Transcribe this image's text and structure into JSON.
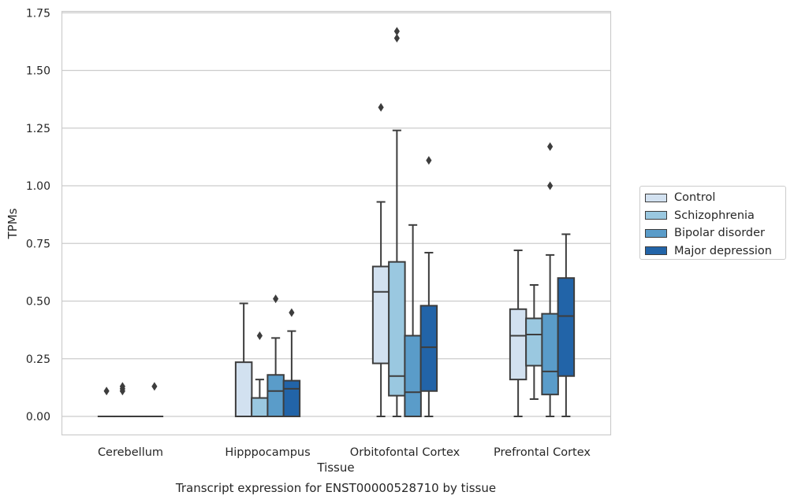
{
  "chart_data": {
    "type": "boxplot",
    "title": "Transcript expression for ENST00000528710 by tissue",
    "xlabel": "Tissue",
    "ylabel": "TPMs",
    "ylim": [
      -0.08,
      1.75
    ],
    "yticks": [
      "0.00",
      "0.25",
      "0.50",
      "0.75",
      "1.00",
      "1.25",
      "1.50",
      "1.75"
    ],
    "grid": "horizontal",
    "legend_position": "right",
    "categories": [
      "Cerebellum",
      "Hipppocampus",
      "Orbitofontal Cortex",
      "Prefrontal Cortex"
    ],
    "series": [
      {
        "name": "Control",
        "color": "#d2e1f0",
        "boxes": [
          {
            "whislo": 0,
            "q1": 0,
            "med": 0,
            "q3": 0,
            "whishi": 0,
            "fliers": [
              0.11
            ]
          },
          {
            "whislo": 0,
            "q1": 0,
            "med": 0,
            "q3": 0.235,
            "whishi": 0.49,
            "fliers": []
          },
          {
            "whislo": 0,
            "q1": 0.23,
            "med": 0.54,
            "q3": 0.65,
            "whishi": 0.93,
            "fliers": [
              1.34
            ]
          },
          {
            "whislo": 0,
            "q1": 0.16,
            "med": 0.35,
            "q3": 0.465,
            "whishi": 0.72,
            "fliers": []
          }
        ]
      },
      {
        "name": "Schizophrenia",
        "color": "#9ac8e0",
        "boxes": [
          {
            "whislo": 0,
            "q1": 0,
            "med": 0,
            "q3": 0,
            "whishi": 0,
            "fliers": [
              0.11,
              0.12,
              0.13
            ]
          },
          {
            "whislo": 0,
            "q1": 0,
            "med": 0,
            "q3": 0.08,
            "whishi": 0.16,
            "fliers": [
              0.35
            ]
          },
          {
            "whislo": 0,
            "q1": 0.09,
            "med": 0.175,
            "q3": 0.67,
            "whishi": 1.24,
            "fliers": [
              1.64,
              1.67
            ]
          },
          {
            "whislo": 0.075,
            "q1": 0.22,
            "med": 0.355,
            "q3": 0.425,
            "whishi": 0.57,
            "fliers": []
          }
        ]
      },
      {
        "name": "Bipolar disorder",
        "color": "#5a9cc9",
        "boxes": [
          {
            "whislo": 0,
            "q1": 0,
            "med": 0,
            "q3": 0,
            "whishi": 0,
            "fliers": []
          },
          {
            "whislo": 0,
            "q1": 0,
            "med": 0.11,
            "q3": 0.18,
            "whishi": 0.34,
            "fliers": [
              0.51
            ]
          },
          {
            "whislo": 0,
            "q1": 0,
            "med": 0.105,
            "q3": 0.35,
            "whishi": 0.83,
            "fliers": []
          },
          {
            "whislo": 0,
            "q1": 0.095,
            "med": 0.195,
            "q3": 0.445,
            "whishi": 0.7,
            "fliers": [
              1.0,
              1.17
            ]
          }
        ]
      },
      {
        "name": "Major depression",
        "color": "#2264a8",
        "boxes": [
          {
            "whislo": 0,
            "q1": 0,
            "med": 0,
            "q3": 0,
            "whishi": 0,
            "fliers": [
              0.13
            ]
          },
          {
            "whislo": 0,
            "q1": 0,
            "med": 0.12,
            "q3": 0.155,
            "whishi": 0.37,
            "fliers": [
              0.45
            ]
          },
          {
            "whislo": 0,
            "q1": 0.11,
            "med": 0.3,
            "q3": 0.48,
            "whishi": 0.71,
            "fliers": [
              1.11
            ]
          },
          {
            "whislo": 0,
            "q1": 0.175,
            "med": 0.435,
            "q3": 0.6,
            "whishi": 0.79,
            "fliers": []
          }
        ]
      }
    ]
  }
}
